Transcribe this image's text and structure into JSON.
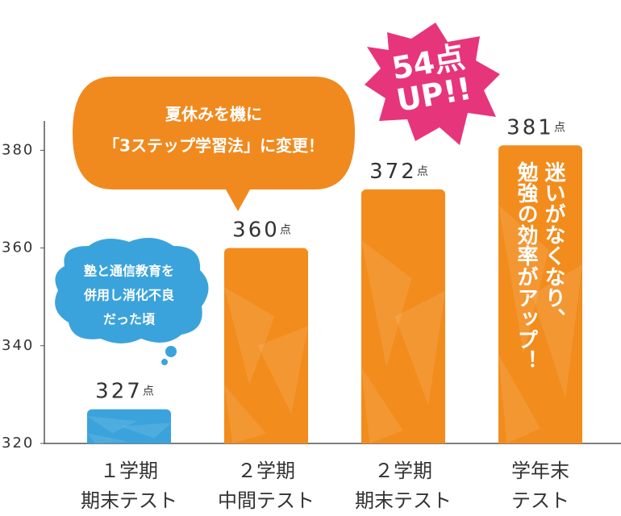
{
  "chart_data": {
    "type": "bar",
    "categories": [
      [
        "１学期",
        "期末テスト"
      ],
      [
        "２学期",
        "中間テスト"
      ],
      [
        "２学期",
        "期末テスト"
      ],
      [
        "学年末",
        "テスト"
      ]
    ],
    "values": [
      327,
      360,
      372,
      381
    ],
    "value_unit": "点",
    "colors": [
      "#3ba3dc",
      "#f28c1c",
      "#f28c1c",
      "#f28c1c"
    ],
    "ylim": [
      320,
      386
    ],
    "yticks": [
      320,
      340,
      360,
      380
    ],
    "annotations": {
      "speech_bubble": [
        "夏休みを機に",
        "「3ステップ学習法」に変更！"
      ],
      "cloud": [
        "塾と通信教育を",
        "併用し消化不良",
        "だった頃"
      ],
      "burst": [
        "54点",
        "UP!!"
      ],
      "bar_text": [
        "迷いがなくなり、",
        "勉強の効率がアップ！"
      ]
    }
  }
}
